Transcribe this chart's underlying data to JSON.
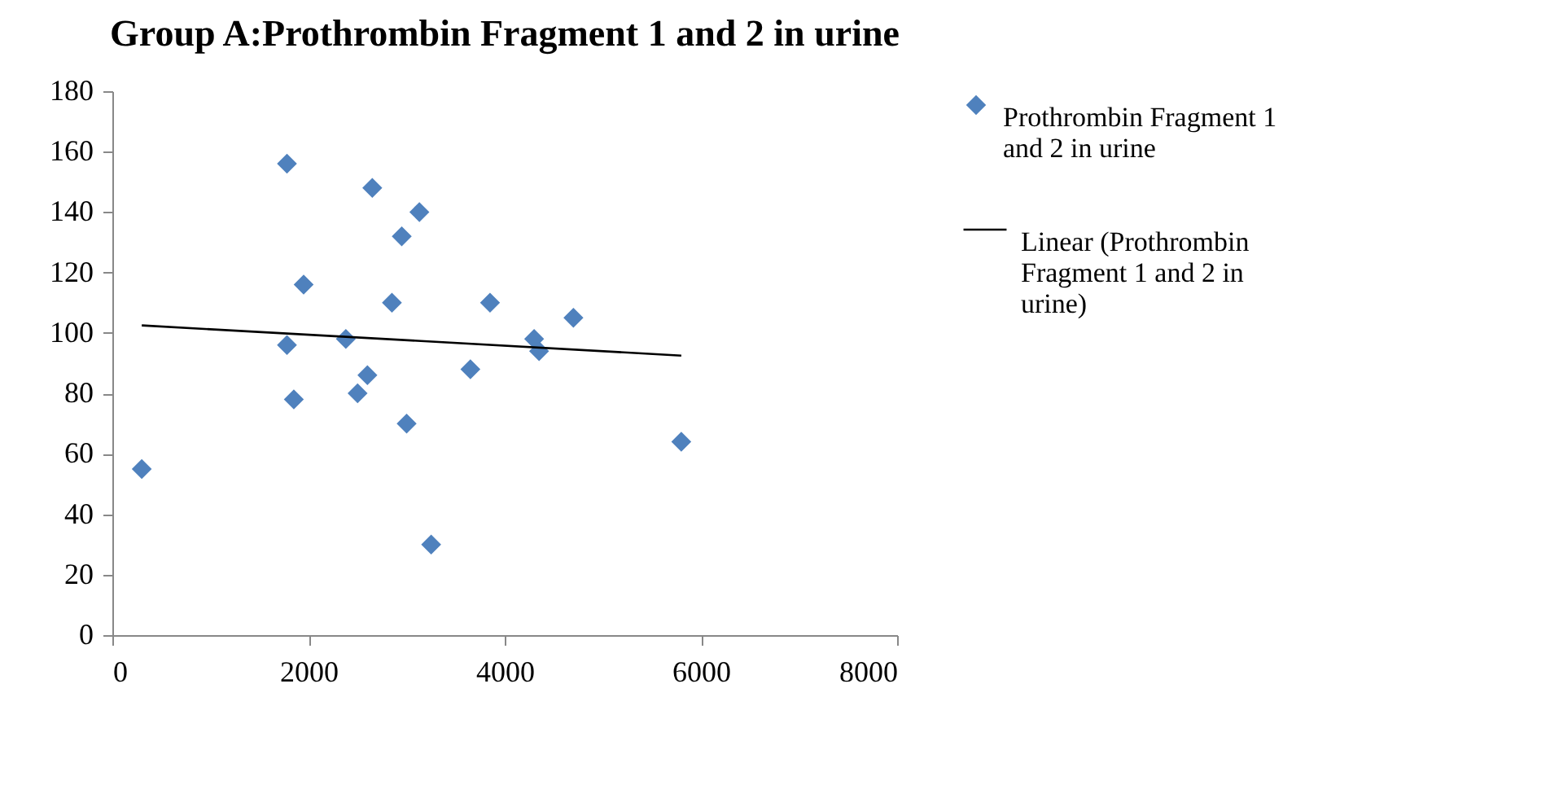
{
  "chart_data": {
    "type": "scatter",
    "title": "Group A:Prothrombin Fragment 1 and 2 in urine",
    "xlim": [
      0,
      8000
    ],
    "xticks": [
      0,
      2000,
      4000,
      6000,
      8000
    ],
    "ylim": [
      0,
      180
    ],
    "yticks": [
      0,
      20,
      40,
      60,
      80,
      100,
      120,
      140,
      160,
      180
    ],
    "grid": false,
    "legend": "right",
    "marker": "diamond",
    "series": [
      {
        "name": "Prothrombin Fragment 1 and 2 in urine",
        "color": "#4f81bd",
        "x": [
          300,
          1780,
          1780,
          1850,
          1950,
          2380,
          2500,
          2600,
          2650,
          2850,
          2950,
          3000,
          3130,
          3250,
          3650,
          3850,
          4300,
          4350,
          4700,
          5800
        ],
        "values": [
          55,
          156,
          96,
          78,
          116,
          98,
          80,
          86,
          148,
          110,
          132,
          70,
          140,
          30,
          88,
          110,
          98,
          94,
          105,
          64
        ]
      },
      {
        "name": "Linear (Prothrombin Fragment 1 and 2 in urine)",
        "type": "line",
        "line_style": "solid",
        "marker": "none",
        "color": "#000000",
        "x": [
          300,
          5800
        ],
        "values": [
          102.5,
          92.5
        ]
      }
    ]
  }
}
